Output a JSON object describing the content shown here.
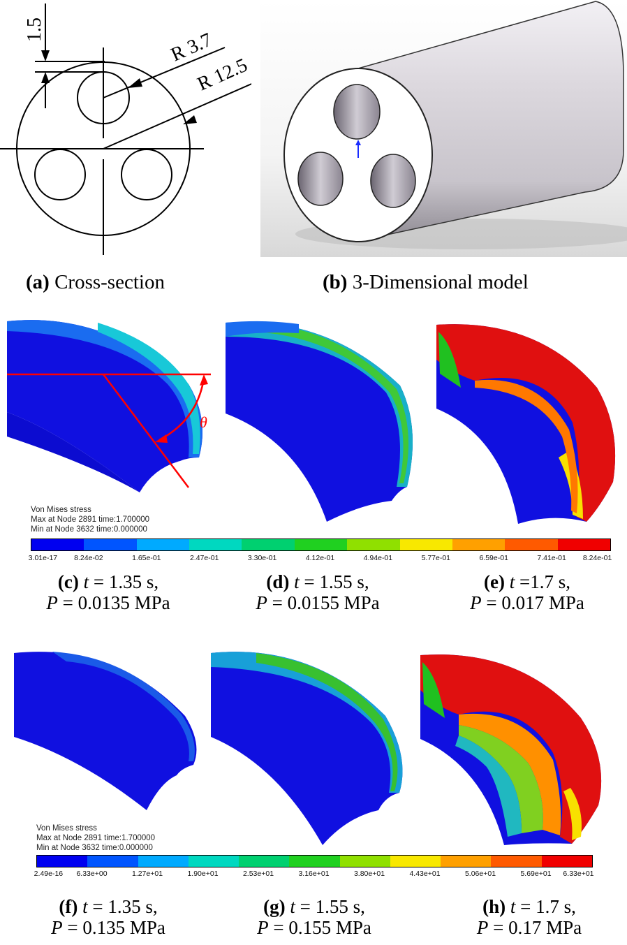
{
  "cross_section": {
    "dim_offset": "1.5",
    "dim_small_radius": "R 3.7",
    "dim_large_radius": "R 12.5",
    "caption_label": "(a)",
    "caption_text": "Cross-section"
  },
  "model3d": {
    "caption_label": "(b)",
    "caption_text": "3-Dimensional model"
  },
  "theta_symbol": "θ",
  "legend_top": {
    "title": "Von Mises stress",
    "max_line": "Max at Node 2891 time:1.700000",
    "min_line": "Min at Node 3632 time:0.000000",
    "ticks": [
      "3.01e-17",
      "8.24e-02",
      "1.65e-01",
      "2.47e-01",
      "3.30e-01",
      "4.12e-01",
      "4.94e-01",
      "5.77e-01",
      "6.59e-01",
      "7.41e-01",
      "8.24e-01"
    ]
  },
  "legend_bottom": {
    "title": "Von Mises stress",
    "max_line": "Max at Node 2891 time:1.700000",
    "min_line": "Min at Node 3632 time:0.000000",
    "ticks": [
      "2.49e-16",
      "6.33e+00",
      "1.27e+01",
      "1.90e+01",
      "2.53e+01",
      "3.16e+01",
      "3.80e+01",
      "4.43e+01",
      "5.06e+01",
      "5.69e+01",
      "6.33e+01"
    ]
  },
  "colorbar_colors": [
    "#0000f0",
    "#0055ff",
    "#00aaff",
    "#00d8c0",
    "#00d070",
    "#20d020",
    "#90e000",
    "#f8e800",
    "#ffa000",
    "#ff5a00",
    "#f00000"
  ],
  "panels": [
    {
      "label": "(c)",
      "t_var": "t",
      "t_text": " = 1.35 s,",
      "p_var": "P",
      "p_text": " = 0.0135 MPa"
    },
    {
      "label": "(d)",
      "t_var": "t",
      "t_text": " = 1.55 s,",
      "p_var": "P",
      "p_text": " = 0.0155 MPa"
    },
    {
      "label": "(e)",
      "t_var": "t",
      "t_text": " =1.7 s,",
      "p_var": "P",
      "p_text": " = 0.017 MPa"
    },
    {
      "label": "(f)",
      "t_var": "t",
      "t_text": " = 1.35 s,",
      "p_var": "P",
      "p_text": " = 0.135 MPa"
    },
    {
      "label": "(g)",
      "t_var": "t",
      "t_text": " = 1.55 s,",
      "p_var": "P",
      "p_text": " = 0.155 MPa"
    },
    {
      "label": "(h)",
      "t_var": "t",
      "t_text": " = 1.7 s,",
      "p_var": "P",
      "p_text": " = 0.17 MPa"
    }
  ]
}
